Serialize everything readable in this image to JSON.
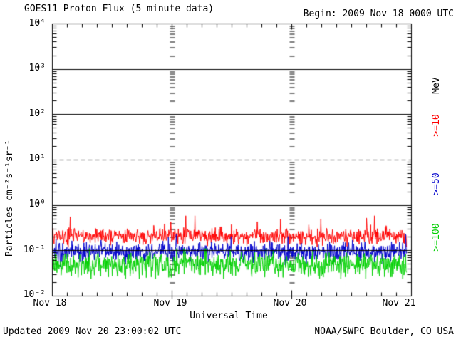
{
  "header": {
    "title": "GOES11 Proton Flux (5 minute data)",
    "begin_label": "Begin: 2009 Nov 18 0000 UTC"
  },
  "footer": {
    "updated": "Updated 2009 Nov 20 23:00:02 UTC",
    "source": "NOAA/SWPC Boulder, CO USA"
  },
  "chart_data": {
    "type": "line",
    "title": "GOES11 Proton Flux (5 minute data)",
    "xlabel": "Universal Time",
    "ylabel": "Particles cm⁻²s⁻¹sr⁻¹",
    "right_axis_unit": "MeV",
    "y_scale": "log",
    "ylim": [
      0.01,
      10000
    ],
    "y_tick_labels": [
      "10⁴",
      "10³",
      "10²",
      "10¹",
      "10⁰",
      "10⁻¹",
      "10⁻²"
    ],
    "x_tick_labels": [
      "Nov 18",
      "Nov 19",
      "Nov 20",
      "Nov 21"
    ],
    "x_range_days": 3,
    "begin_utc": "2009 Nov 18 0000 UTC",
    "data_end_day_fraction": 2.9583,
    "samples_per_hour": 12,
    "threshold_line": {
      "value": 10,
      "style": "dashed",
      "color": "#000000"
    },
    "solid_gridline_values": [
      1000,
      100,
      1,
      0.1
    ],
    "frame_color": "#000000",
    "series": [
      {
        "label": ">=10",
        "color": "#ff0000",
        "typical_flux": 0.21,
        "observed_range": [
          0.11,
          0.57
        ],
        "log10_mean": -0.68,
        "log10_std": 0.085,
        "log10_min": -0.96,
        "log10_max": -0.23,
        "spike_prob": 0.012
      },
      {
        "label": ">=50",
        "color": "#0000cc",
        "typical_flux": 0.095,
        "observed_range": [
          0.045,
          0.22
        ],
        "log10_mean": -1.02,
        "log10_std": 0.105,
        "log10_min": -1.4,
        "log10_max": -0.63,
        "spike_prob": 0.004
      },
      {
        "label": ">=100",
        "color": "#00d000",
        "typical_flux": 0.05,
        "observed_range": [
          0.024,
          0.11
        ],
        "log10_mean": -1.3,
        "log10_std": 0.135,
        "log10_min": -1.62,
        "log10_max": -0.95,
        "spike_prob": 0
      }
    ]
  }
}
